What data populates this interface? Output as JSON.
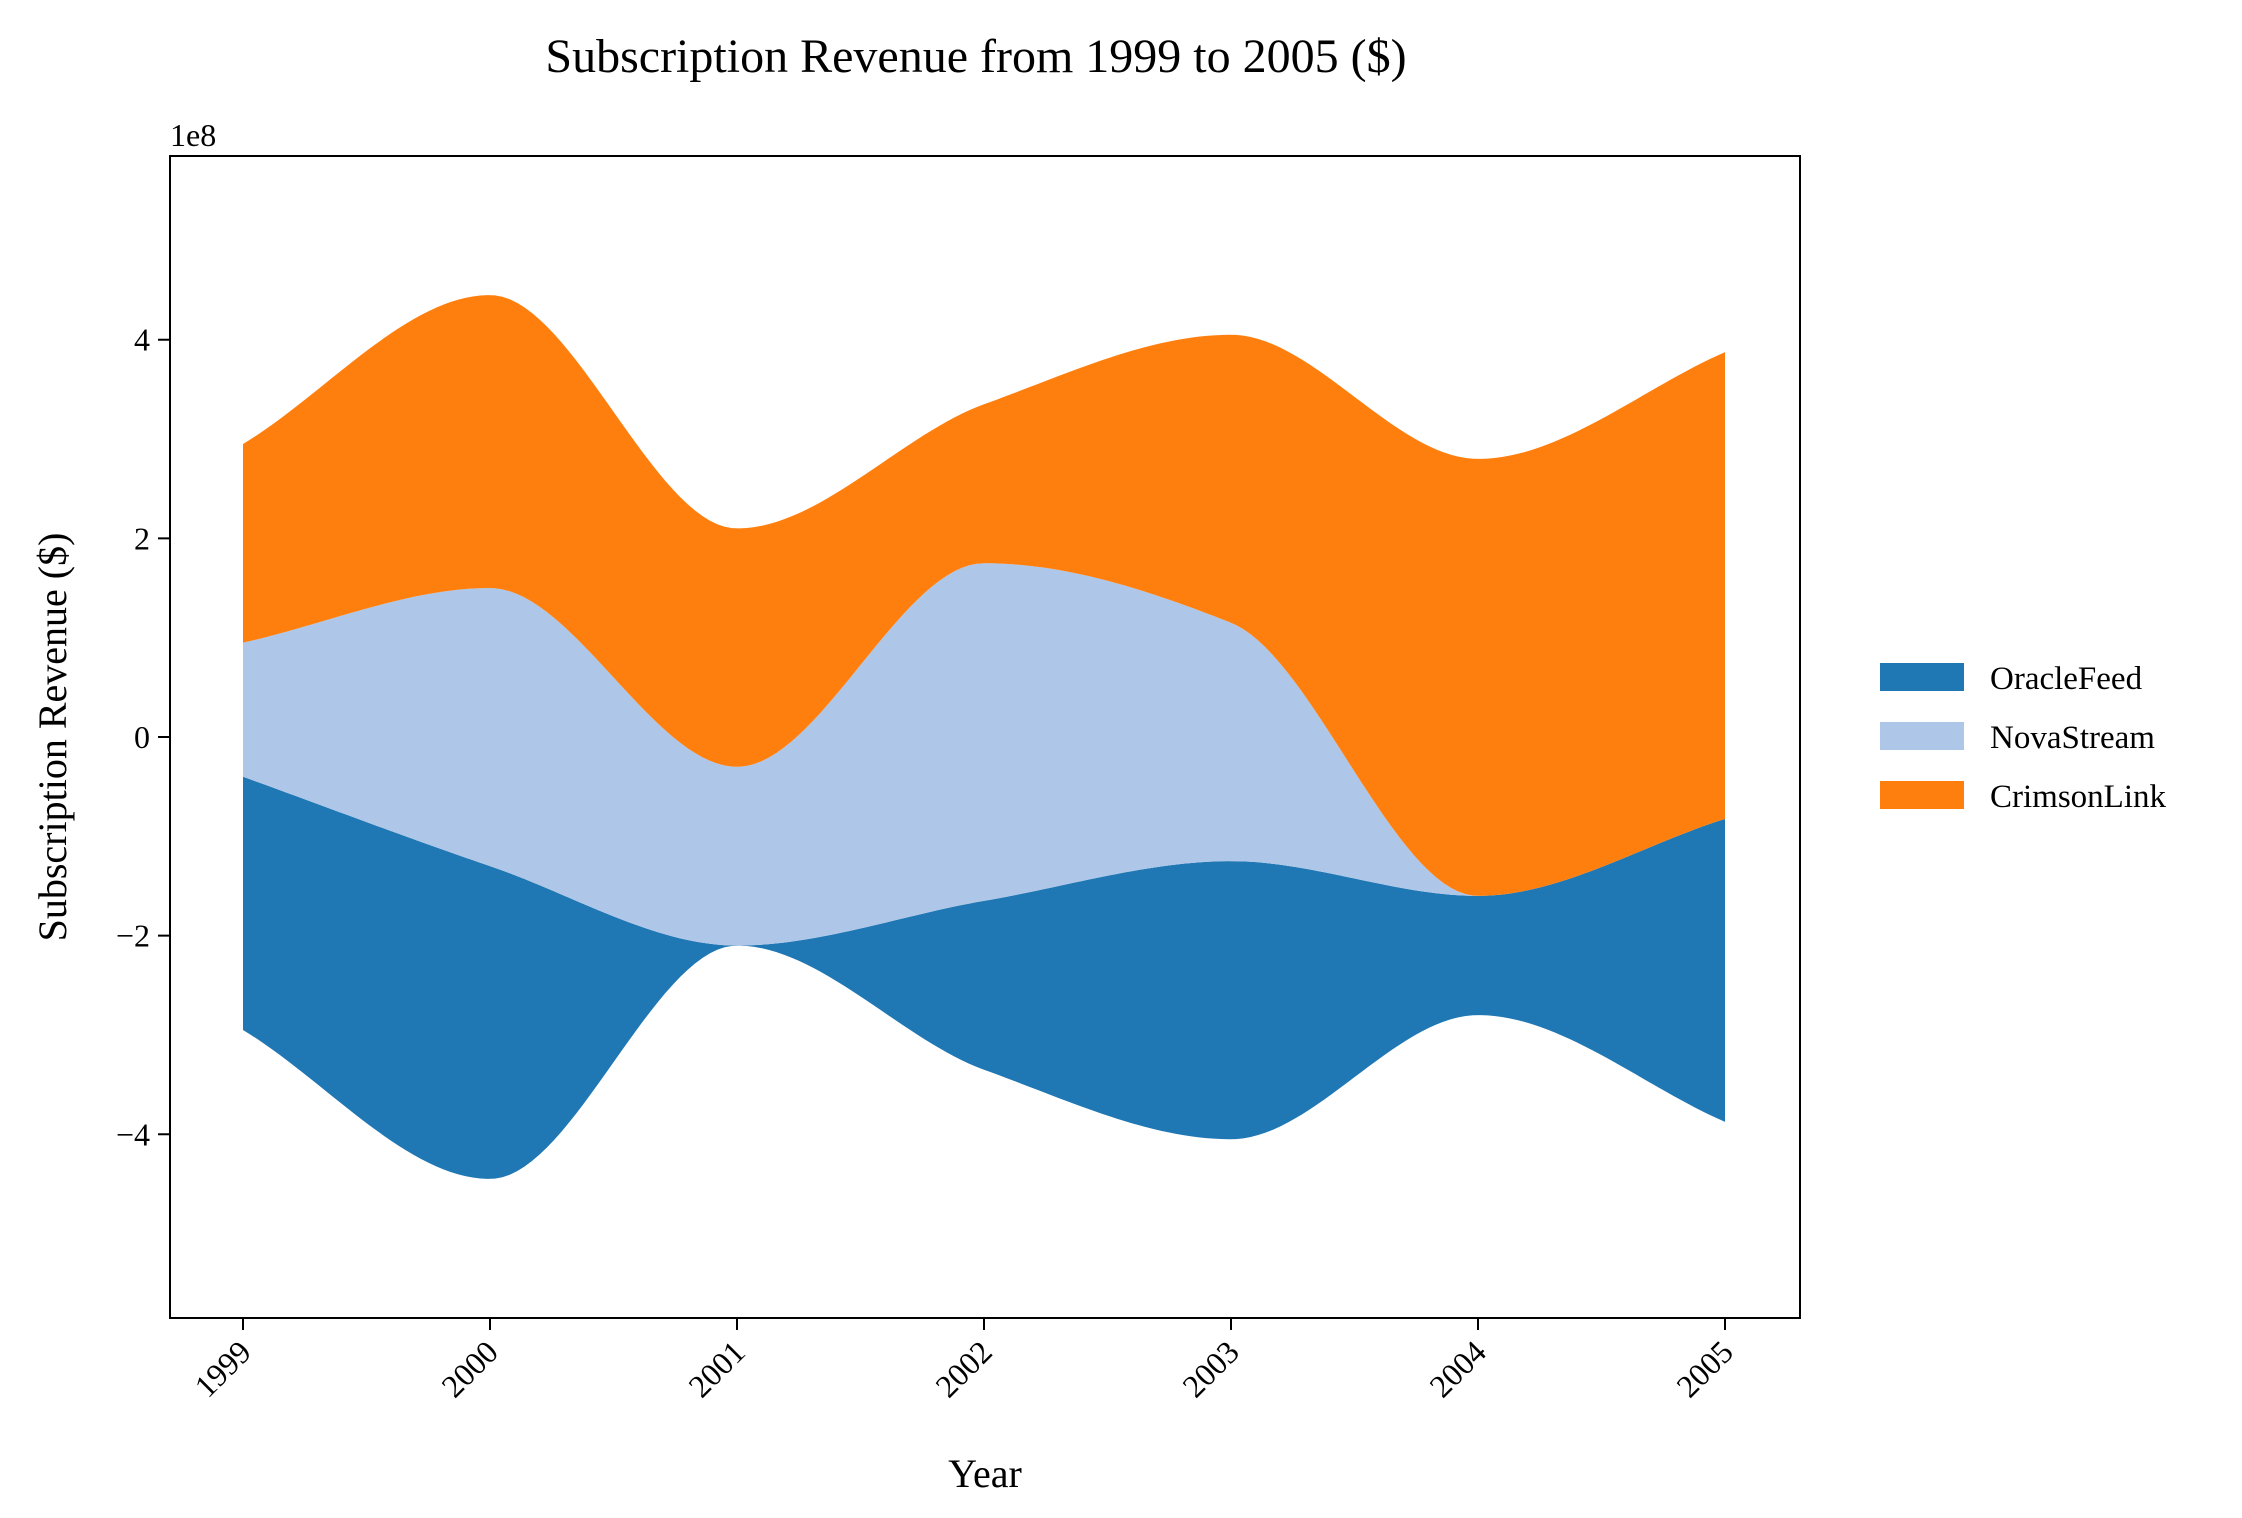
{
  "chart_data": {
    "type": "area",
    "subtype": "streamgraph",
    "title": "Subscription Revenue from 1999 to 2005 ($)",
    "xlabel": "Year",
    "ylabel": "Subscription Revenue ($)",
    "offset_text": "1e8",
    "x": [
      1999,
      2000,
      2001,
      2002,
      2003,
      2004,
      2005
    ],
    "x_tick_labels": [
      "1999",
      "2000",
      "2001",
      "2002",
      "2003",
      "2004",
      "2005"
    ],
    "ylim": [
      -5.85,
      5.85
    ],
    "y_ticks": [
      -4,
      -2,
      0,
      2,
      4
    ],
    "y_tick_labels": [
      "−4",
      "−2",
      "0",
      "2",
      "4"
    ],
    "grid": false,
    "legend_position": "right",
    "interpolation": "smooth",
    "series": [
      {
        "name": "OracleFeed",
        "color": "#1f77b4",
        "values": [
          2.55,
          3.15,
          0.0,
          1.7,
          2.8,
          1.2,
          3.05
        ]
      },
      {
        "name": "NovaStream",
        "color": "#aec7e8",
        "values": [
          1.35,
          2.8,
          1.8,
          3.4,
          2.4,
          0.0,
          0.0
        ]
      },
      {
        "name": "CrimsonLink",
        "color": "#ff7f0e",
        "values": [
          2.0,
          2.95,
          2.4,
          1.6,
          2.9,
          4.4,
          4.7
        ]
      }
    ]
  }
}
